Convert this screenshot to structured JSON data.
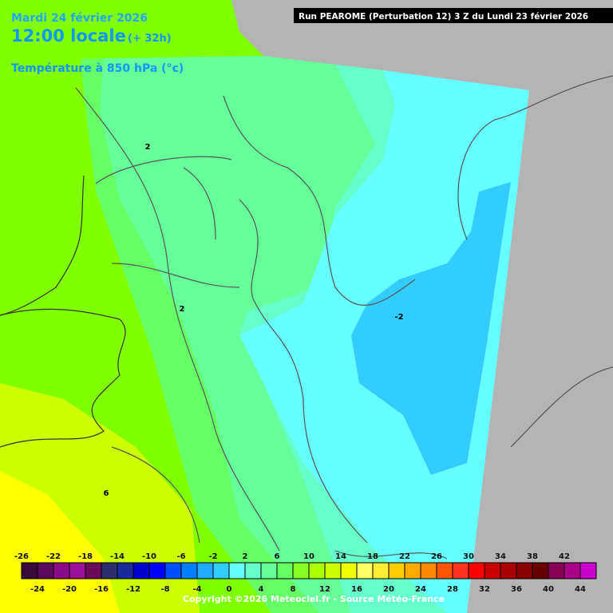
{
  "header": {
    "date": "Mardi 24 février 2026",
    "time": "12:00 locale",
    "lead": "(+ 32h)",
    "field": "Température à 850 hPa (°c)",
    "run": "Run PEAROME (Perturbation 12) 3 Z du Lundi 23 février 2026"
  },
  "contour_labels": [
    2,
    2,
    -2,
    6
  ],
  "legend": {
    "ticks": [
      -26,
      -24,
      -22,
      -20,
      -18,
      -16,
      -14,
      -12,
      -10,
      -8,
      -6,
      -4,
      -2,
      0,
      2,
      4,
      6,
      8,
      10,
      12,
      14,
      16,
      18,
      20,
      22,
      24,
      26,
      28,
      30,
      32,
      34,
      36,
      38,
      40,
      42,
      44
    ],
    "colors": [
      "#3a0a3a",
      "#5a0a5a",
      "#8a0a8a",
      "#9a109a",
      "#6a0a5a",
      "#2e2e6e",
      "#1a2a9a",
      "#0000cc",
      "#0000ff",
      "#0050ff",
      "#0080ff",
      "#22aaff",
      "#33ccff",
      "#66ffff",
      "#66ffcc",
      "#66ff99",
      "#66ff66",
      "#88ff22",
      "#aaff00",
      "#ccff00",
      "#eeff00",
      "#ffff66",
      "#ffee33",
      "#ffcc00",
      "#ffaa00",
      "#ff8800",
      "#ff5500",
      "#ff3322",
      "#ff0000",
      "#cc0000",
      "#aa0000",
      "#880000",
      "#660000",
      "#880055",
      "#aa0088",
      "#cc00cc"
    ]
  },
  "copyright": "Copyright ©2026 Meteociel.fr - Source Météo-France"
}
